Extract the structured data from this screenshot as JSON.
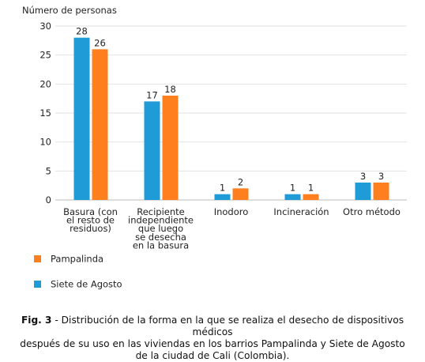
{
  "chart_data": {
    "type": "bar",
    "ylabel": "Número de personas",
    "ylim": [
      0,
      30
    ],
    "yticks": [
      0,
      5,
      10,
      15,
      20,
      25,
      30
    ],
    "grid": true,
    "categories": [
      [
        "Basura (con",
        "el resto de",
        "residuos)"
      ],
      [
        "Recipiente",
        "independiente",
        "que luego",
        "se desecha",
        "en la basura"
      ],
      [
        "Inodoro"
      ],
      [
        "Incineración"
      ],
      [
        "Otro método"
      ]
    ],
    "series": [
      {
        "name": "Siete de Agosto",
        "color": "#1f9bd7",
        "values": [
          28,
          17,
          1,
          1,
          3
        ]
      },
      {
        "name": "Pampalinda",
        "color": "#ff7f1e",
        "values": [
          26,
          18,
          2,
          1,
          3
        ]
      }
    ],
    "legend_placement": "bottom-left"
  },
  "caption": {
    "label": "Fig. 3",
    "text_line1": " - Distribución de la forma en la que se realiza el desecho de dispositivos médicos",
    "text_line2": "después de su uso en las viviendas en los barrios Pampalinda y Siete de Agosto",
    "text_line3": "de la ciudad de Cali (Colombia)."
  }
}
